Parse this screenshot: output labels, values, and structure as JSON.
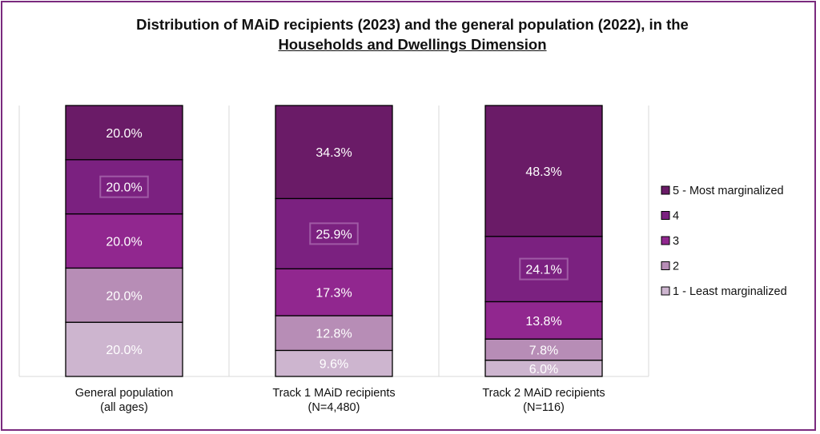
{
  "chart_data": {
    "type": "bar",
    "stacked": true,
    "title_line1": "Distribution of MAiD recipients (2023) and the general population (2022), in the",
    "title_line2": "Households and Dwellings Dimension",
    "categories": [
      {
        "line1": "General population",
        "line2": "(all ages)"
      },
      {
        "line1": "Track 1 MAiD recipients",
        "line2": "(N=4,480)"
      },
      {
        "line1": "Track 2 MAiD recipients",
        "line2": "(N=116)"
      }
    ],
    "series": [
      {
        "name": "1 - Least marginalized",
        "color": "#cdb5cf",
        "values": [
          20.0,
          9.6,
          6.0
        ],
        "labels": [
          "20.0%",
          "9.6%",
          "6.0%"
        ]
      },
      {
        "name": "2",
        "color": "#b78db6",
        "values": [
          20.0,
          12.8,
          7.8
        ],
        "labels": [
          "20.0%",
          "12.8%",
          "7.8%"
        ]
      },
      {
        "name": "3",
        "color": "#91278f",
        "values": [
          20.0,
          17.3,
          13.8
        ],
        "labels": [
          "20.0%",
          "17.3%",
          "13.8%"
        ]
      },
      {
        "name": "4",
        "color": "#7b2180",
        "values": [
          20.0,
          25.9,
          24.1
        ],
        "labels": [
          "20.0%",
          "25.9%",
          "24.1%"
        ]
      },
      {
        "name": "5 - Most marginalized",
        "color": "#6a1b67",
        "values": [
          20.0,
          34.3,
          48.3
        ],
        "labels": [
          "20.0%",
          "34.3%",
          "48.3%"
        ]
      }
    ],
    "highlighted_labels": [
      [
        1,
        3
      ],
      [
        2,
        3
      ],
      [
        3,
        3
      ]
    ],
    "ylim": [
      0,
      100
    ],
    "legend_position": "right"
  }
}
